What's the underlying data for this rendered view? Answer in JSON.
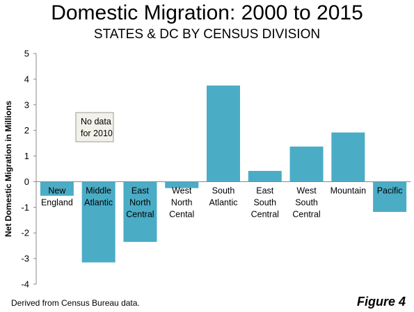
{
  "title": "Domestic Migration: 2000 to 2015",
  "subtitle": "STATES & DC BY CENSUS DIVISION",
  "footer": "Derived from Census Bureau data.",
  "figure_label": "Figure 4",
  "annotation": {
    "line1": "No data",
    "line2": "for 2010"
  },
  "colors": {
    "bar": "#4BACC6",
    "axis": "#888888",
    "grid": "#dddddd",
    "note_bg": "#F2F2EA"
  },
  "chart_data": {
    "type": "bar",
    "title": "Domestic Migration: 2000 to 2015",
    "subtitle": "STATES & DC BY CENSUS DIVISION",
    "xlabel": "",
    "ylabel": "Net Domestic Migration in Millions",
    "ylim": [
      -4,
      5
    ],
    "yticks": [
      5,
      4,
      3,
      2,
      1,
      0,
      -1,
      -2,
      -3,
      -4
    ],
    "grid": false,
    "categories": [
      [
        "New",
        "England"
      ],
      [
        "Middle",
        "Atlantic"
      ],
      [
        "East",
        "North",
        "Central"
      ],
      [
        "West",
        "North",
        "Cental"
      ],
      [
        "South",
        "Atlantic"
      ],
      [
        "East",
        "South",
        "Central"
      ],
      [
        "West",
        "South",
        "Central"
      ],
      [
        "Mountain"
      ],
      [
        "Pacific"
      ]
    ],
    "values": [
      -0.55,
      -3.15,
      -2.35,
      -0.25,
      3.75,
      0.42,
      1.37,
      1.92,
      -1.18
    ]
  }
}
